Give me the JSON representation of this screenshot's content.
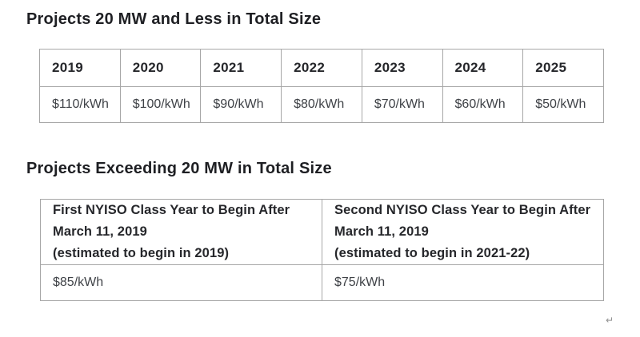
{
  "colors": {
    "background": "#ffffff",
    "heading_text": "#1e1f23",
    "header_cell_text": "#26272b",
    "value_cell_text": "#3f4247",
    "table_border": "#a7a7a7",
    "return_mark": "#8f8f8f"
  },
  "small_projects": {
    "title": "Projects 20 MW and Less in Total Size",
    "years": [
      "2019",
      "2020",
      "2021",
      "2022",
      "2023",
      "2024",
      "2025"
    ],
    "prices": [
      "$110/kWh",
      "$100/kWh",
      "$90/kWh",
      "$80/kWh",
      "$70/kWh",
      "$60/kWh",
      "$50/kWh"
    ]
  },
  "large_projects": {
    "title": "Projects Exceeding 20 MW in Total Size",
    "columns": [
      {
        "line1": "First NYISO Class Year to Begin After",
        "line2": "March 11, 2019",
        "line3": "(estimated to begin in 2019)"
      },
      {
        "line1": "Second NYISO Class Year to Begin After",
        "line2": "March 11, 2019",
        "line3": "(estimated to begin in 2021-22)"
      }
    ],
    "prices": [
      "$85/kWh",
      "$75/kWh"
    ]
  },
  "misc": {
    "return_mark": "↵"
  }
}
